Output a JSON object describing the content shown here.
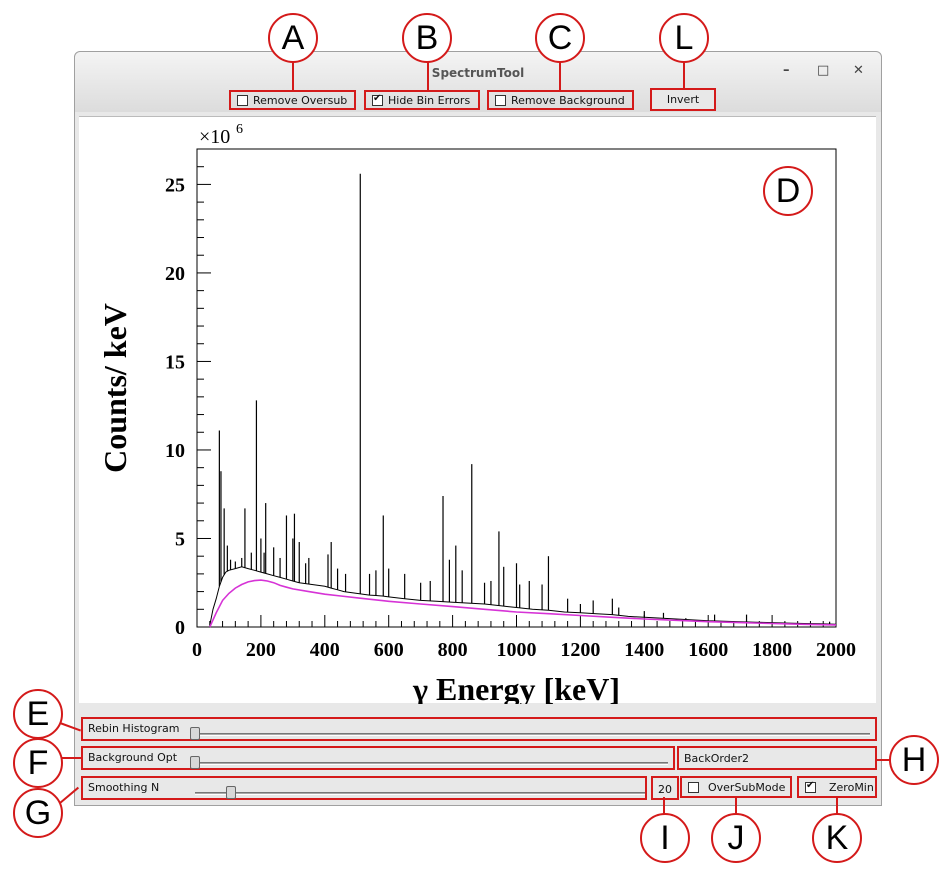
{
  "window": {
    "title": "SpectrumTool"
  },
  "title_controls": {
    "minimize": "–",
    "maximize": "□",
    "close": "✕"
  },
  "toolbar": {
    "remove_oversub": {
      "label": "Remove Oversub",
      "checked": false
    },
    "hide_bin_errors": {
      "label": "Hide Bin Errors",
      "checked": true
    },
    "remove_background": {
      "label": "Remove Background",
      "checked": false
    },
    "invert_label": "Invert"
  },
  "markers": {
    "A": "A",
    "B": "B",
    "C": "C",
    "D": "D",
    "E": "E",
    "F": "F",
    "G": "G",
    "H": "H",
    "I": "I",
    "J": "J",
    "K": "K",
    "L": "L"
  },
  "controls": {
    "rebin": {
      "label": "Rebin Histogram",
      "value": 0.0
    },
    "background_opt": {
      "label": "Background Opt",
      "value": 0.0
    },
    "background_mode": "BackOrder2",
    "smoothing": {
      "label": "Smoothing N",
      "value": 0.07
    },
    "smoothing_value": "20",
    "oversubmode": {
      "label": "OverSubMode",
      "checked": false
    },
    "zeromin": {
      "label": "ZeroMin",
      "checked": true
    }
  },
  "colors": {
    "annotation": "#d41a1a",
    "spectrum": "#000000",
    "background_fit": "#d633d6"
  },
  "chart_data": {
    "type": "line",
    "xlabel": "γ Energy [keV]",
    "ylabel": "Counts/ keV",
    "y_multiplier": "×10^6",
    "xlim": [
      0,
      2000
    ],
    "ylim": [
      0,
      27
    ],
    "x_ticks": [
      "0",
      "200",
      "400",
      "600",
      "800",
      "1000",
      "1200",
      "1400",
      "1600",
      "1800",
      "2000"
    ],
    "y_ticks": [
      "0",
      "5",
      "10",
      "15",
      "20",
      "25"
    ],
    "series": [
      {
        "x": [
          40,
          50,
          60,
          70,
          80,
          90,
          100,
          120,
          140,
          160,
          180,
          200,
          220,
          240,
          260,
          280,
          300,
          320,
          340,
          360,
          380,
          400,
          420,
          440,
          460,
          480,
          500,
          520,
          540,
          560,
          580,
          600,
          650,
          700,
          750,
          800,
          850,
          900,
          950,
          1000,
          1050,
          1100,
          1150,
          1200,
          1250,
          1300,
          1350,
          1400,
          1450,
          1500,
          1550,
          1600,
          1650,
          1700,
          1750,
          1800,
          1850,
          1900,
          1950,
          2000
        ],
        "y": [
          0.1,
          1.0,
          1.6,
          2.3,
          2.8,
          3.1,
          3.2,
          3.3,
          3.4,
          3.3,
          3.2,
          3.1,
          3.0,
          2.9,
          2.8,
          2.7,
          2.6,
          2.5,
          2.45,
          2.4,
          2.35,
          2.3,
          2.2,
          2.1,
          2.0,
          1.95,
          1.9,
          1.85,
          1.8,
          1.78,
          1.75,
          1.7,
          1.6,
          1.5,
          1.45,
          1.4,
          1.35,
          1.3,
          1.2,
          1.1,
          1.0,
          0.95,
          0.85,
          0.8,
          0.75,
          0.7,
          0.6,
          0.55,
          0.5,
          0.45,
          0.4,
          0.35,
          0.32,
          0.3,
          0.27,
          0.25,
          0.22,
          0.2,
          0.18,
          0.16
        ]
      },
      {
        "x": [
          40,
          60,
          80,
          100,
          120,
          140,
          160,
          180,
          200,
          220,
          240,
          260,
          280,
          300,
          350,
          400,
          450,
          500,
          550,
          600,
          700,
          800,
          900,
          1000,
          1100,
          1200,
          1300,
          1400,
          1500,
          1600,
          1700,
          1800,
          1900,
          2000
        ],
        "y": [
          0.0,
          0.8,
          1.5,
          1.9,
          2.2,
          2.4,
          2.55,
          2.62,
          2.65,
          2.6,
          2.5,
          2.35,
          2.25,
          2.15,
          2.0,
          1.85,
          1.75,
          1.65,
          1.55,
          1.45,
          1.3,
          1.15,
          1.0,
          0.85,
          0.75,
          0.65,
          0.55,
          0.45,
          0.38,
          0.3,
          0.25,
          0.2,
          0.15,
          0.12
        ]
      }
    ],
    "peaks": [
      {
        "x": 70,
        "y": 11.1
      },
      {
        "x": 75,
        "y": 8.8
      },
      {
        "x": 85,
        "y": 6.7
      },
      {
        "x": 95,
        "y": 4.6
      },
      {
        "x": 105,
        "y": 3.8
      },
      {
        "x": 120,
        "y": 3.7
      },
      {
        "x": 140,
        "y": 3.9
      },
      {
        "x": 150,
        "y": 6.7
      },
      {
        "x": 170,
        "y": 4.2
      },
      {
        "x": 186,
        "y": 12.8
      },
      {
        "x": 200,
        "y": 5.0
      },
      {
        "x": 210,
        "y": 4.2
      },
      {
        "x": 215,
        "y": 7.0
      },
      {
        "x": 240,
        "y": 4.5
      },
      {
        "x": 260,
        "y": 3.9
      },
      {
        "x": 280,
        "y": 6.3
      },
      {
        "x": 300,
        "y": 5.0
      },
      {
        "x": 305,
        "y": 6.4
      },
      {
        "x": 320,
        "y": 4.8
      },
      {
        "x": 340,
        "y": 3.6
      },
      {
        "x": 350,
        "y": 3.9
      },
      {
        "x": 410,
        "y": 4.1
      },
      {
        "x": 420,
        "y": 4.8
      },
      {
        "x": 440,
        "y": 3.3
      },
      {
        "x": 465,
        "y": 3.0
      },
      {
        "x": 511,
        "y": 25.6
      },
      {
        "x": 540,
        "y": 3.0
      },
      {
        "x": 560,
        "y": 3.2
      },
      {
        "x": 583,
        "y": 6.3
      },
      {
        "x": 600,
        "y": 3.3
      },
      {
        "x": 650,
        "y": 3.0
      },
      {
        "x": 700,
        "y": 2.5
      },
      {
        "x": 730,
        "y": 2.6
      },
      {
        "x": 770,
        "y": 7.4
      },
      {
        "x": 790,
        "y": 3.8
      },
      {
        "x": 810,
        "y": 4.6
      },
      {
        "x": 830,
        "y": 3.2
      },
      {
        "x": 860,
        "y": 9.2
      },
      {
        "x": 900,
        "y": 2.5
      },
      {
        "x": 920,
        "y": 2.6
      },
      {
        "x": 945,
        "y": 5.4
      },
      {
        "x": 960,
        "y": 3.4
      },
      {
        "x": 1000,
        "y": 3.6
      },
      {
        "x": 1010,
        "y": 2.4
      },
      {
        "x": 1040,
        "y": 2.6
      },
      {
        "x": 1080,
        "y": 2.4
      },
      {
        "x": 1100,
        "y": 4.0
      },
      {
        "x": 1160,
        "y": 1.6
      },
      {
        "x": 1200,
        "y": 1.3
      },
      {
        "x": 1240,
        "y": 1.5
      },
      {
        "x": 1300,
        "y": 1.6
      },
      {
        "x": 1320,
        "y": 1.1
      },
      {
        "x": 1400,
        "y": 0.9
      },
      {
        "x": 1460,
        "y": 0.8
      },
      {
        "x": 1530,
        "y": 0.5
      },
      {
        "x": 1620,
        "y": 0.7
      },
      {
        "x": 1720,
        "y": 0.7
      },
      {
        "x": 1980,
        "y": 0.3
      }
    ]
  }
}
